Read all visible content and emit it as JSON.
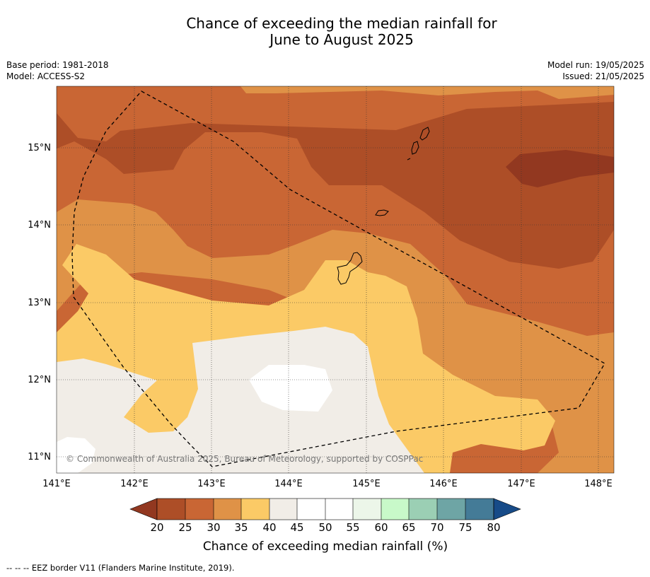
{
  "title": {
    "line1": "Chance of exceeding the median rainfall for",
    "line2": "June to August 2025"
  },
  "meta": {
    "base_period": "Base period: 1981-2018",
    "model": "Model: ACCESS-S2",
    "model_run": "Model run: 19/05/2025",
    "issued": "Issued: 21/05/2025"
  },
  "map": {
    "lon_labels": [
      "141°E",
      "142°E",
      "143°E",
      "144°E",
      "145°E",
      "146°E",
      "147°E",
      "148°E"
    ],
    "lat_labels": [
      "15°N",
      "14°N",
      "13°N",
      "12°N",
      "11°N"
    ],
    "copyright": "© Commonwealth of Australia 2025, Bureau of Meteorology, supported by COSPPac",
    "zone_colors": {
      "lt25": "#ad4e27",
      "lt20": "#923820",
      "25_30": "#c96634",
      "30_35": "#df9247",
      "35_40": "#fbca66",
      "40_45": "#f1ede7",
      "45_55": "#ffffff"
    }
  },
  "colorbar": {
    "ticks": [
      "20",
      "25",
      "30",
      "35",
      "40",
      "45",
      "50",
      "55",
      "60",
      "65",
      "70",
      "75",
      "80"
    ],
    "colors": [
      "#ad4e27",
      "#c96634",
      "#df9247",
      "#fbca66",
      "#f1ede7",
      "#ffffff",
      "#ffffff",
      "#ecf6e9",
      "#c8f9c9",
      "#9bcfb4",
      "#6ea5a5",
      "#447b97"
    ],
    "under_color": "#923820",
    "over_color": "#174b88",
    "label": "Chance of exceeding median rainfall (%)"
  },
  "footer": "--  --  -- EEZ border V11 (Flanders Marine Institute, 2019)."
}
